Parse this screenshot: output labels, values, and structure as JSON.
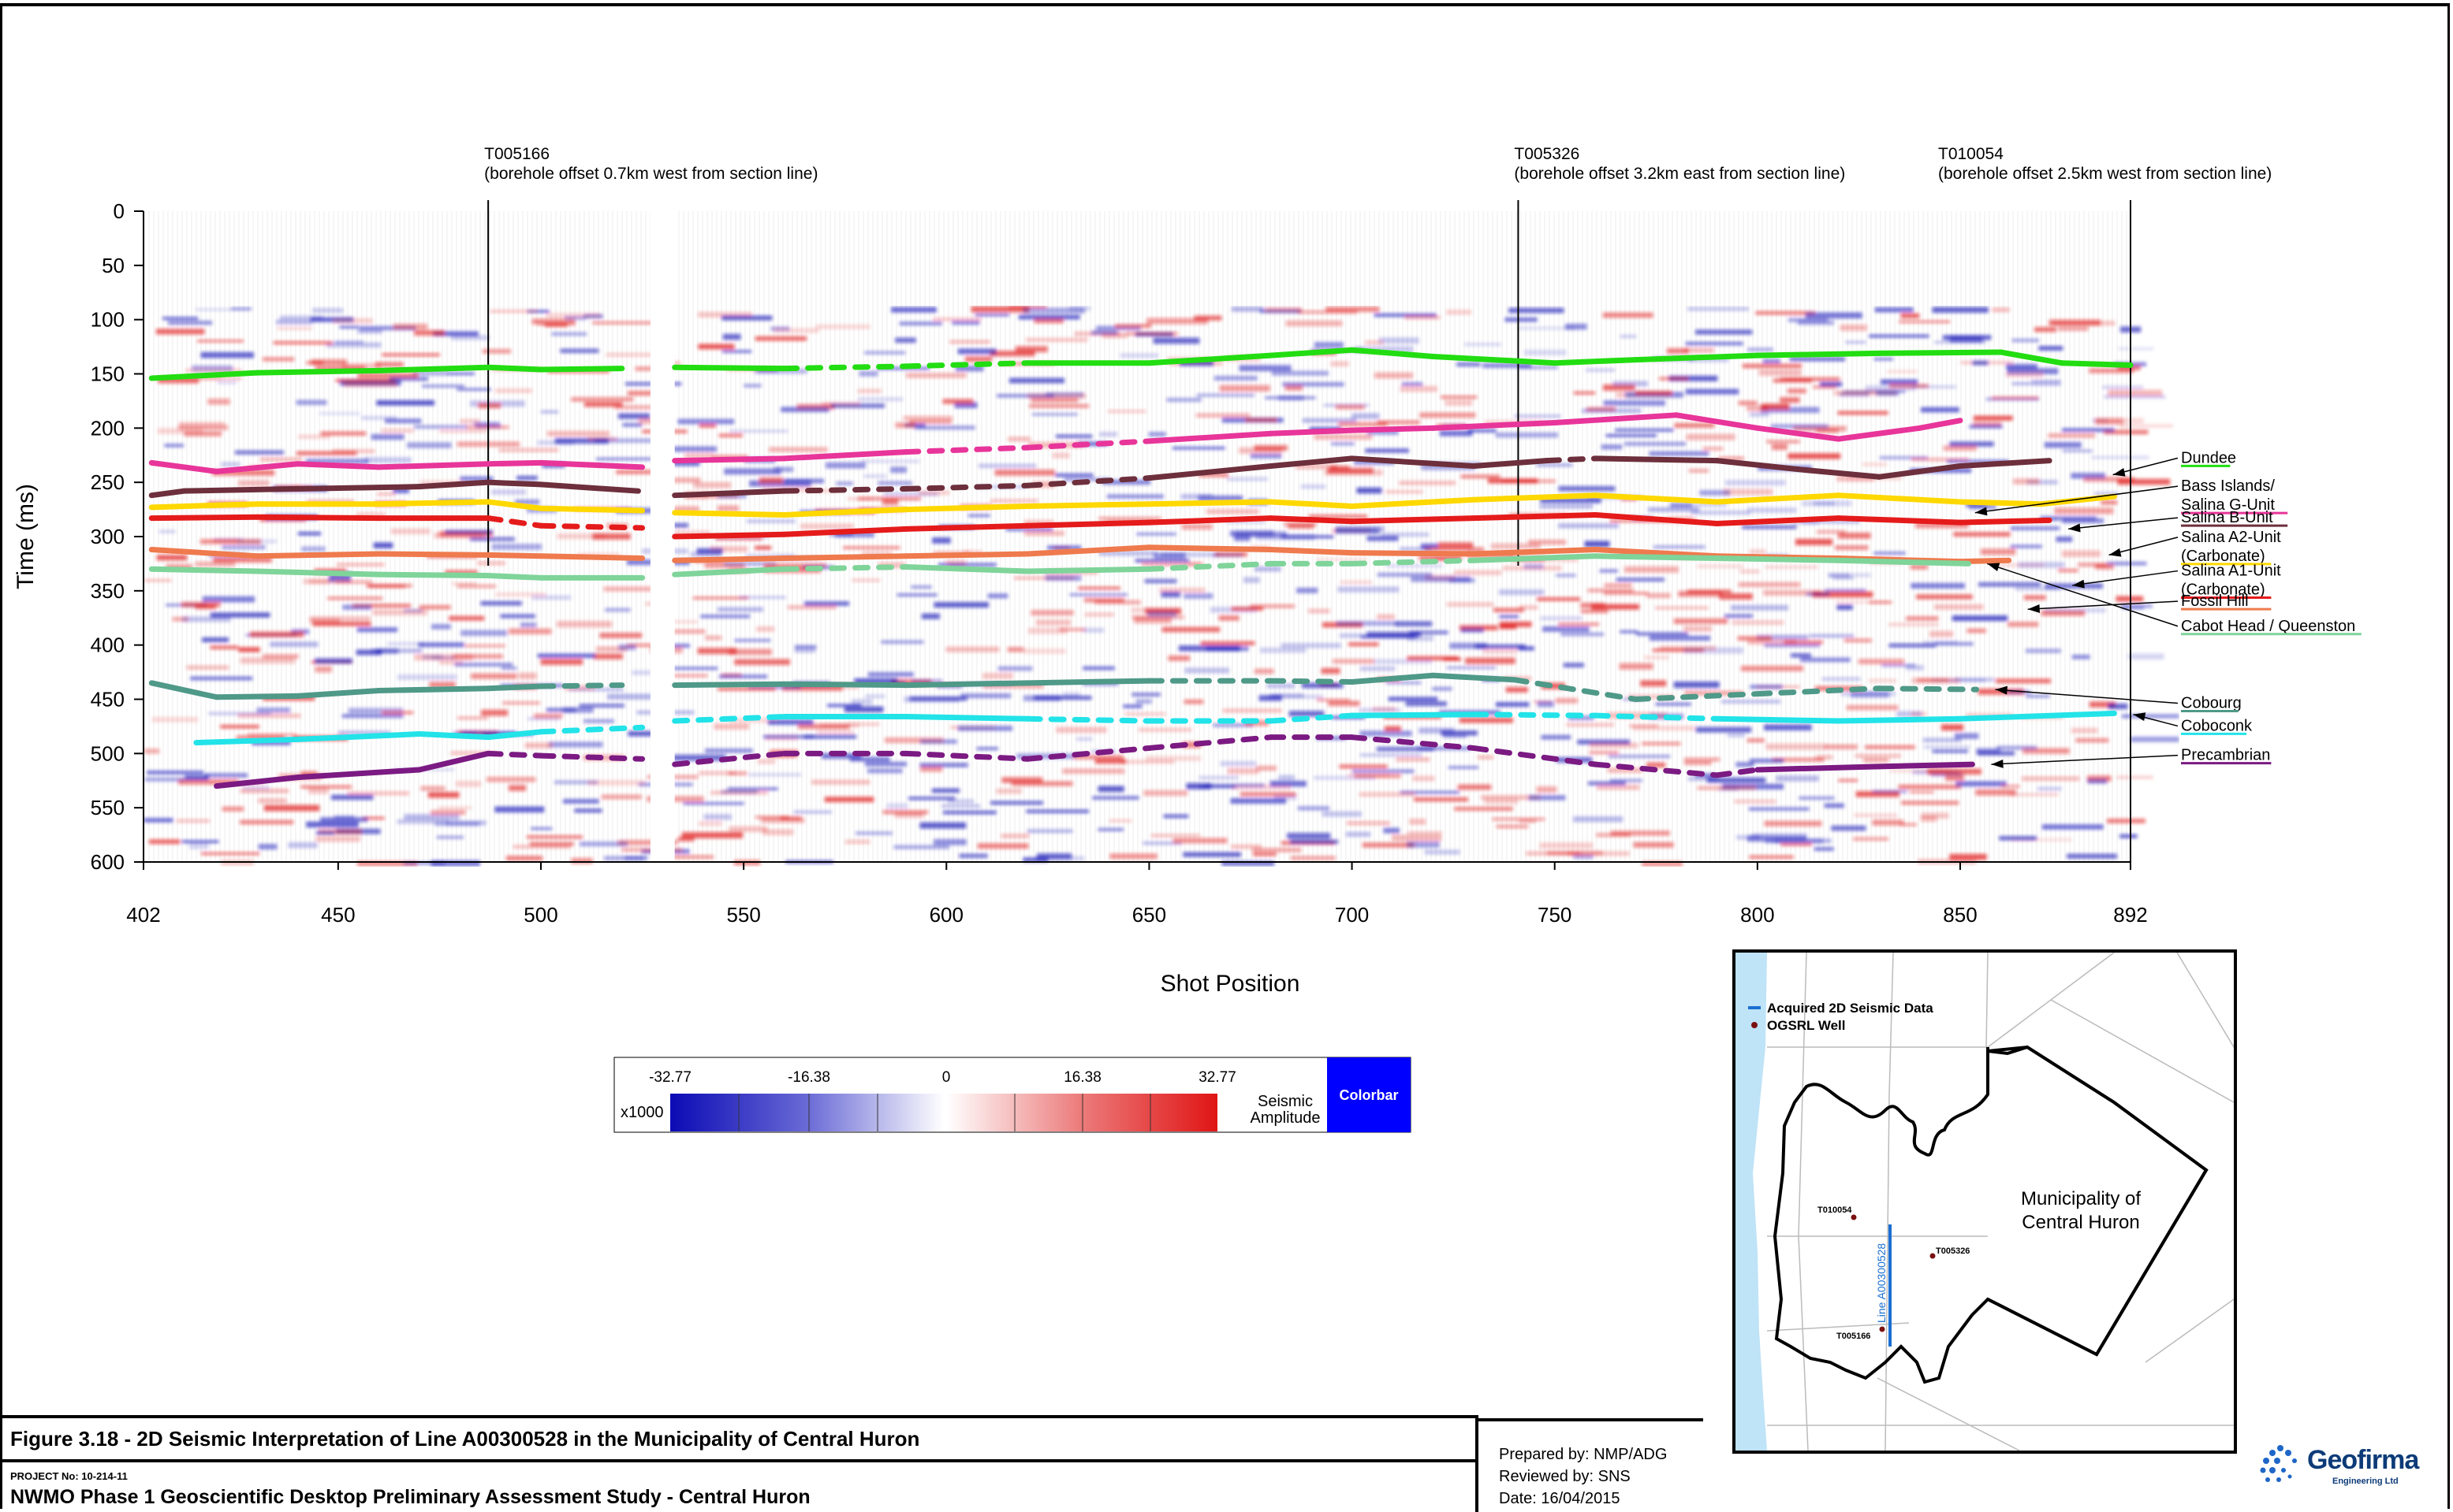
{
  "figure": {
    "title": "Figure 3.18 - 2D Seismic Interpretation of Line A00300528 in the Municipality of Central Huron",
    "project_no": "PROJECT No: 10-214-11",
    "project_title": "NWMO Phase 1 Geoscientific Desktop Preliminary Assessment Study - Central Huron",
    "prepared_by": "Prepared by:  NMP/ADG",
    "reviewed_by": "Reviewed by: SNS",
    "date": "Date: 16/04/2015"
  },
  "logo": {
    "name": "Geofirma",
    "sub": "Engineering Ltd"
  },
  "chart_data": {
    "type": "line",
    "title": "",
    "xlabel": "Shot Position",
    "ylabel": "Time (ms)",
    "xlim": [
      402,
      892
    ],
    "ylim": [
      600,
      0
    ],
    "x_ticks": [
      402,
      450,
      500,
      550,
      600,
      650,
      700,
      750,
      800,
      850,
      892
    ],
    "y_ticks": [
      0,
      50,
      100,
      150,
      200,
      250,
      300,
      350,
      400,
      450,
      500,
      550,
      600
    ],
    "boreholes": [
      {
        "x": 487,
        "name": "T005166",
        "note": "(borehole offset 0.7km west from section line)"
      },
      {
        "x": 741,
        "name": "T005326",
        "note": "(borehole offset 3.2km east from section line)"
      },
      {
        "x": 892,
        "name": "T010054",
        "note": "(borehole offset 2.5km west from section line)"
      }
    ],
    "data_gap": [
      527,
      533
    ],
    "series": [
      {
        "name": "Dundee",
        "label_lines": [
          "Dundee"
        ],
        "color": "#22dd11",
        "label_y": 232,
        "arrow_x": 883,
        "arrow_y": 243,
        "x": [
          404,
          430,
          460,
          487,
          500,
          520,
          533,
          560,
          590,
          620,
          650,
          680,
          700,
          720,
          750,
          770,
          800,
          830,
          860,
          875,
          892
        ],
        "y": [
          154,
          149,
          147,
          144,
          146,
          145,
          144,
          145,
          143,
          140,
          140,
          133,
          128,
          134,
          140,
          137,
          133,
          131,
          130,
          140,
          142
        ],
        "dashed": [
          [
            560,
            630
          ]
        ]
      },
      {
        "name": "Bass Islands/ Salina G-Unit",
        "label_lines": [
          "Bass Islands/",
          "Salina G-Unit"
        ],
        "color": "#e8359a",
        "label_y": 258,
        "arrow_x": 849,
        "arrow_y": 278,
        "x": [
          404,
          420,
          440,
          460,
          487,
          500,
          525,
          533,
          560,
          590,
          620,
          650,
          680,
          700,
          720,
          750,
          780,
          800,
          820,
          840,
          850
        ],
        "y": [
          232,
          240,
          233,
          236,
          233,
          232,
          236,
          230,
          228,
          222,
          218,
          212,
          205,
          202,
          200,
          195,
          188,
          200,
          210,
          200,
          193
        ],
        "dashed": [
          [
            600,
            640
          ]
        ]
      },
      {
        "name": "Salina B-Unit",
        "label_lines": [
          "Salina B-Unit"
        ],
        "color": "#6d2f3c",
        "label_y": 287,
        "arrow_x": 872,
        "arrow_y": 293,
        "x": [
          404,
          412,
          440,
          470,
          487,
          500,
          524,
          533,
          560,
          590,
          620,
          650,
          680,
          700,
          730,
          748,
          760,
          790,
          810,
          830,
          850,
          872
        ],
        "y": [
          262,
          258,
          256,
          254,
          250,
          252,
          258,
          262,
          258,
          256,
          253,
          246,
          235,
          228,
          235,
          230,
          228,
          230,
          238,
          245,
          235,
          230
        ],
        "dashed": [
          [
            560,
            640
          ],
          [
            748,
            760
          ]
        ]
      },
      {
        "name": "Salina A2-Unit (Carbonate)",
        "label_lines": [
          "Salina A2-Unit",
          "(Carbonate)"
        ],
        "color": "#ffd800",
        "label_y": 305,
        "arrow_x": 882,
        "arrow_y": 317,
        "x": [
          404,
          430,
          460,
          487,
          500,
          525,
          533,
          560,
          590,
          620,
          650,
          680,
          700,
          730,
          760,
          790,
          820,
          850,
          870,
          888
        ],
        "y": [
          273,
          270,
          270,
          268,
          274,
          276,
          278,
          280,
          275,
          272,
          270,
          268,
          272,
          266,
          262,
          268,
          262,
          268,
          270,
          263
        ]
      },
      {
        "name": "Salina A1-Unit (Carbonate)",
        "label_lines": [
          "Salina A1-Unit",
          "(Carbonate)"
        ],
        "color": "#e51b1b",
        "label_y": 336,
        "arrow_x": 873,
        "arrow_y": 345,
        "x": [
          404,
          430,
          460,
          487,
          500,
          525,
          533,
          560,
          590,
          620,
          650,
          680,
          700,
          730,
          760,
          790,
          820,
          850,
          872
        ],
        "y": [
          283,
          282,
          283,
          283,
          290,
          292,
          300,
          298,
          293,
          290,
          287,
          283,
          286,
          283,
          280,
          288,
          283,
          287,
          285
        ],
        "dashed": [
          [
            487,
            520
          ]
        ]
      },
      {
        "name": "Fossil Hill",
        "label_lines": [
          "Fossil Hill"
        ],
        "color": "#ef7a4e",
        "label_y": 364,
        "arrow_x": 862,
        "arrow_y": 367,
        "x": [
          404,
          430,
          460,
          487,
          500,
          525,
          533,
          560,
          590,
          620,
          650,
          680,
          700,
          730,
          760,
          790,
          820,
          850,
          862
        ],
        "y": [
          312,
          318,
          316,
          317,
          318,
          320,
          322,
          320,
          318,
          316,
          310,
          312,
          315,
          316,
          312,
          318,
          320,
          323,
          322
        ]
      },
      {
        "name": "Cabot Head / Queenston",
        "label_lines": [
          "Cabot Head / Queenston"
        ],
        "color": "#7fd49a",
        "label_y": 387,
        "arrow_x": 852,
        "arrow_y": 325,
        "x": [
          404,
          430,
          460,
          487,
          500,
          525,
          533,
          560,
          590,
          620,
          650,
          680,
          700,
          730,
          760,
          790,
          820,
          852
        ],
        "y": [
          330,
          332,
          335,
          336,
          338,
          338,
          335,
          330,
          328,
          332,
          330,
          325,
          325,
          322,
          318,
          320,
          322,
          325
        ],
        "dashed": [
          [
            560,
            600
          ],
          [
            640,
            740
          ]
        ]
      },
      {
        "name": "Cobourg",
        "label_lines": [
          "Cobourg"
        ],
        "color": "#4f9988",
        "label_y": 458,
        "arrow_x": 854,
        "arrow_y": 441,
        "x": [
          404,
          420,
          440,
          460,
          487,
          500,
          520,
          533,
          560,
          590,
          620,
          650,
          680,
          700,
          720,
          740,
          770,
          800,
          830,
          854
        ],
        "y": [
          435,
          448,
          447,
          442,
          440,
          438,
          437,
          437,
          436,
          437,
          435,
          433,
          433,
          434,
          428,
          432,
          450,
          445,
          440,
          441
        ],
        "dashed": [
          [
            500,
            530
          ],
          [
            660,
            700
          ],
          [
            740,
            854
          ]
        ]
      },
      {
        "name": "Coboconk",
        "label_lines": [
          "Coboconk"
        ],
        "color": "#22e3e8",
        "label_y": 479,
        "arrow_x": 888,
        "arrow_y": 464,
        "x": [
          415,
          440,
          470,
          487,
          500,
          525,
          533,
          560,
          590,
          620,
          650,
          680,
          700,
          730,
          760,
          790,
          820,
          850,
          888
        ],
        "y": [
          490,
          487,
          482,
          485,
          480,
          476,
          470,
          466,
          466,
          468,
          470,
          470,
          465,
          464,
          465,
          468,
          470,
          468,
          463
        ],
        "dashed": [
          [
            500,
            560
          ],
          [
            620,
            690
          ],
          [
            740,
            780
          ]
        ]
      },
      {
        "name": "Precambrian",
        "label_lines": [
          "Precambrian"
        ],
        "color": "#7b1a82",
        "label_y": 506,
        "arrow_x": 853,
        "arrow_y": 510,
        "x": [
          420,
          440,
          470,
          487,
          500,
          525,
          533,
          560,
          590,
          620,
          650,
          680,
          700,
          730,
          760,
          790,
          800,
          830,
          853
        ],
        "y": [
          530,
          522,
          515,
          500,
          502,
          505,
          510,
          500,
          500,
          505,
          495,
          485,
          485,
          495,
          510,
          520,
          515,
          512,
          510
        ],
        "dashed": [
          [
            487,
            800
          ]
        ]
      }
    ],
    "colorbar": {
      "multiplier": "x1000",
      "ticks": [
        "-32.77",
        "-16.38",
        "0",
        "16.38",
        "32.77"
      ],
      "label_line1": "Seismic",
      "label_line2": "Amplitude",
      "button": "Colorbar",
      "negative_color": "#0b0bb5",
      "positive_color": "#e01515"
    }
  },
  "map": {
    "legend_seismic": "Acquired 2D Seismic Data",
    "legend_well": "OGSRL Well",
    "municipality_line1": "Municipality of",
    "municipality_line2": "Central Huron",
    "line_label": "Line A00300528",
    "wells": [
      "T010054",
      "T005326",
      "T005166"
    ],
    "line_color": "#1a6fd1",
    "lake_color": "#bfe3f7"
  }
}
